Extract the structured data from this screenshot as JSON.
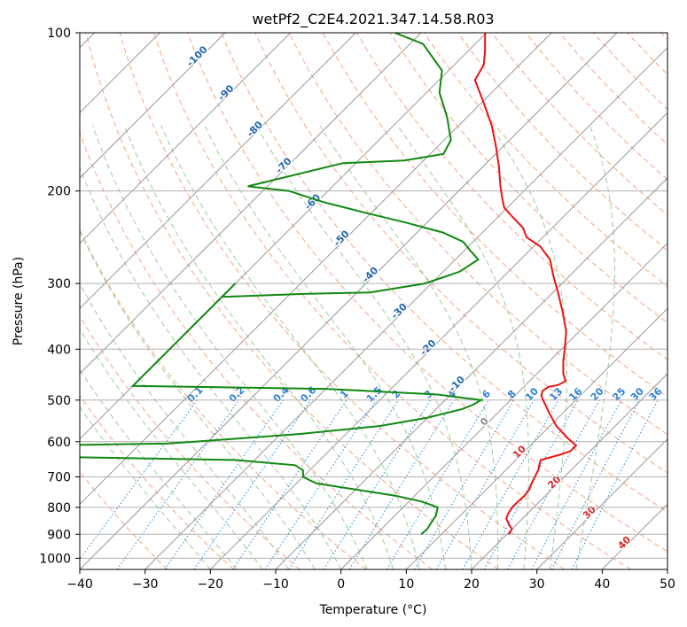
{
  "chart_data": {
    "type": "line",
    "subtype": "skew-T log-P diagram",
    "title": "wetPf2_C2E4.2021.347.14.58.R03",
    "xlabel": "Temperature (°C)",
    "ylabel": "Pressure (hPa)",
    "xlim": [
      -40,
      50
    ],
    "ylim": [
      1050,
      100
    ],
    "y_scale": "log",
    "x_ticks": [
      "−40",
      "−30",
      "−20",
      "−10",
      "0",
      "10",
      "20",
      "30",
      "40",
      "50"
    ],
    "x_tick_values": [
      -40,
      -30,
      -20,
      -10,
      0,
      10,
      20,
      30,
      40,
      50
    ],
    "y_ticks": [
      "100",
      "200",
      "300",
      "400",
      "500",
      "600",
      "700",
      "800",
      "900",
      "1000"
    ],
    "y_tick_values": [
      100,
      200,
      300,
      400,
      500,
      600,
      700,
      800,
      900,
      1000
    ],
    "grid": true,
    "skew_degrees": 45,
    "colors": {
      "temperature": "#ee1111",
      "dewpoint": "#118811",
      "isotherm": "#999999",
      "dry_adiabat": "#f4a582",
      "moist_adiabat": "#9ccc9c",
      "mixing_ratio": "#3a8fd9",
      "mixing_label": "#2b7fd9",
      "isotherm_label": "#2166ac",
      "isotherm_label_warm": "#d62728",
      "zero_label": "#888888",
      "hpa_grid": "#b0b0b0"
    },
    "isotherm_labels": [
      {
        "temp": -100,
        "text": "-100"
      },
      {
        "temp": -90,
        "text": "-90"
      },
      {
        "temp": -80,
        "text": "-80"
      },
      {
        "temp": -70,
        "text": "-70"
      },
      {
        "temp": -60,
        "text": "-60"
      },
      {
        "temp": -50,
        "text": "-50"
      },
      {
        "temp": -40,
        "text": "-40"
      },
      {
        "temp": -30,
        "text": "-30"
      },
      {
        "temp": -20,
        "text": "-20"
      },
      {
        "temp": -10,
        "text": "-10"
      },
      {
        "temp": 0,
        "text": "0"
      },
      {
        "temp": 10,
        "text": "10"
      },
      {
        "temp": 20,
        "text": "20"
      },
      {
        "temp": 30,
        "text": "30"
      },
      {
        "temp": 40,
        "text": "40"
      }
    ],
    "mixing_ratio_labels": [
      "0.1",
      "0.2",
      "0.4",
      "0.6",
      "1",
      "1.5",
      "2",
      "3",
      "4",
      "6",
      "8",
      "10",
      "13",
      "16",
      "20",
      "25",
      "30",
      "36"
    ],
    "mixing_ratio_values": [
      0.1,
      0.2,
      0.4,
      0.6,
      1,
      1.5,
      2,
      3,
      4,
      6,
      8,
      10,
      13,
      16,
      20,
      25,
      30,
      36
    ],
    "series": [
      {
        "key": "temperature",
        "points": [
          [
            900,
            20.3
          ],
          [
            880,
            20.0
          ],
          [
            860,
            18.7
          ],
          [
            840,
            17.5
          ],
          [
            820,
            17.0
          ],
          [
            800,
            16.7
          ],
          [
            780,
            16.7
          ],
          [
            760,
            16.8
          ],
          [
            740,
            16.6
          ],
          [
            720,
            16.0
          ],
          [
            700,
            15.5
          ],
          [
            680,
            15.0
          ],
          [
            650,
            13.8
          ],
          [
            635,
            16.0
          ],
          [
            625,
            17.0
          ],
          [
            610,
            17.0
          ],
          [
            590,
            14.5
          ],
          [
            560,
            11.0
          ],
          [
            530,
            8.0
          ],
          [
            500,
            5.0
          ],
          [
            490,
            4.0
          ],
          [
            480,
            3.5
          ],
          [
            472,
            3.8
          ],
          [
            468,
            5.0
          ],
          [
            460,
            5.5
          ],
          [
            445,
            4.0
          ],
          [
            420,
            2.0
          ],
          [
            400,
            0.5
          ],
          [
            370,
            -2.0
          ],
          [
            340,
            -5.5
          ],
          [
            310,
            -9.5
          ],
          [
            290,
            -12.5
          ],
          [
            270,
            -15.5
          ],
          [
            255,
            -19.0
          ],
          [
            245,
            -22.5
          ],
          [
            235,
            -24.5
          ],
          [
            225,
            -27.5
          ],
          [
            215,
            -30.5
          ],
          [
            205,
            -32.5
          ],
          [
            195,
            -34.5
          ],
          [
            180,
            -37.5
          ],
          [
            165,
            -41.0
          ],
          [
            150,
            -45.0
          ],
          [
            135,
            -50.0
          ],
          [
            123,
            -54.5
          ],
          [
            115,
            -55.5
          ],
          [
            108,
            -57.5
          ],
          [
            100,
            -60.2
          ]
        ]
      },
      {
        "key": "dewpoint",
        "points": [
          [
            900,
            6.9
          ],
          [
            880,
            7.0
          ],
          [
            860,
            6.7
          ],
          [
            830,
            6.3
          ],
          [
            800,
            5.3
          ],
          [
            780,
            2.0
          ],
          [
            760,
            -3.0
          ],
          [
            740,
            -10.0
          ],
          [
            720,
            -17.0
          ],
          [
            700,
            -20.0
          ],
          [
            680,
            -21.0
          ],
          [
            665,
            -23.0
          ],
          [
            650,
            -33.0
          ],
          [
            640,
            -65.0
          ],
          [
            610,
            -65.0
          ],
          [
            605,
            -46.0
          ],
          [
            600,
            -42.0
          ],
          [
            580,
            -27.0
          ],
          [
            560,
            -16.0
          ],
          [
            540,
            -10.0
          ],
          [
            520,
            -6.0
          ],
          [
            510,
            -5.0
          ],
          [
            500,
            -4.5
          ],
          [
            488,
            -12.0
          ],
          [
            476,
            -30.0
          ],
          [
            470,
            -60.0
          ],
          [
            300,
            -60.0
          ],
          [
            318,
            -60.0
          ],
          [
            314,
            -48.0
          ],
          [
            312,
            -38.0
          ],
          [
            300,
            -31.0
          ],
          [
            285,
            -27.5
          ],
          [
            270,
            -26.5
          ],
          [
            260,
            -29.0
          ],
          [
            250,
            -31.5
          ],
          [
            240,
            -36.0
          ],
          [
            230,
            -43.0
          ],
          [
            220,
            -51.0
          ],
          [
            210,
            -59.0
          ],
          [
            200,
            -66.0
          ],
          [
            196,
            -73.0
          ],
          [
            177,
            -62.0
          ],
          [
            175,
            -53.0
          ],
          [
            170,
            -48.0
          ],
          [
            160,
            -49.0
          ],
          [
            145,
            -53.0
          ],
          [
            130,
            -58.0
          ],
          [
            118,
            -61.0
          ],
          [
            105,
            -68.0
          ],
          [
            100,
            -74.0
          ]
        ]
      }
    ]
  }
}
